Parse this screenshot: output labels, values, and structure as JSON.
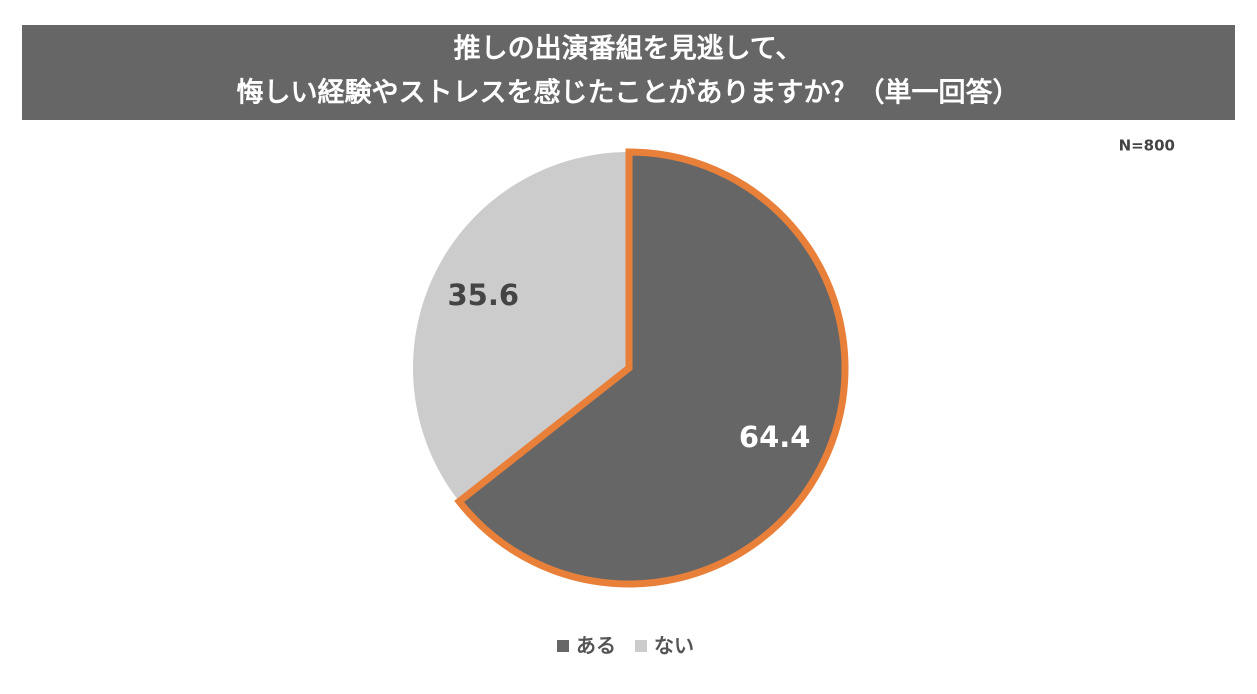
{
  "chart_data": {
    "type": "pie",
    "title": [
      "推しの出演番組を見逃して、",
      "悔しい経験やストレスを感じたことがありますか？（単一回答）"
    ],
    "note": "N=800",
    "categories": [
      "ある",
      "ない"
    ],
    "values": [
      64.4,
      35.6
    ],
    "colors": [
      "#666666",
      "#cccccc"
    ],
    "label_colors": [
      "#ffffff",
      "#444444"
    ],
    "outline_colors": [
      "#e8803a",
      null
    ],
    "legend": "bottom"
  }
}
